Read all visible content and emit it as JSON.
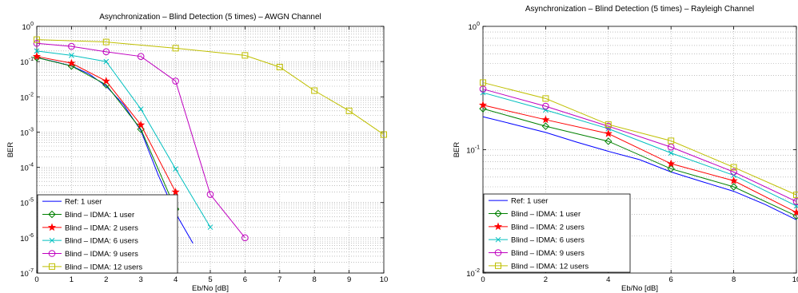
{
  "chart_data": [
    {
      "type": "line",
      "title": "Asynchronization – Blind Detection (5 times) – AWGN Channel",
      "xlabel": "Eb/No [dB]",
      "ylabel": "BER",
      "y_scale": "log",
      "xlim": [
        0,
        10
      ],
      "ylim": [
        1e-07,
        1
      ],
      "x_ticks": [
        "0",
        "1",
        "2",
        "3",
        "4",
        "5",
        "6",
        "7",
        "8",
        "9",
        "10"
      ],
      "y_ticks": [
        {
          "base": "10",
          "exp": "0"
        },
        {
          "base": "10",
          "exp": "-1"
        },
        {
          "base": "10",
          "exp": "-2"
        },
        {
          "base": "10",
          "exp": "-3"
        },
        {
          "base": "10",
          "exp": "-4"
        },
        {
          "base": "10",
          "exp": "-5"
        },
        {
          "base": "10",
          "exp": "-6"
        },
        {
          "base": "10",
          "exp": "-7"
        }
      ],
      "grid": true,
      "legend_position": "bottom-left",
      "series": [
        {
          "name": "Ref: 1 user",
          "color": "#0000ff",
          "marker": "none",
          "x": [
            0,
            0.5,
            1,
            1.5,
            2,
            2.5,
            3,
            3.5,
            4,
            4.5
          ],
          "y": [
            0.13,
            0.1,
            0.075,
            0.045,
            0.02,
            0.006,
            0.0011,
            6e-05,
            5e-06,
            7e-07
          ]
        },
        {
          "name": "Blind – IDMA: 1 user",
          "color": "#008000",
          "marker": "diamond",
          "x": [
            0,
            1,
            2,
            3,
            4
          ],
          "y": [
            0.13,
            0.075,
            0.022,
            0.0012,
            6.5e-06
          ]
        },
        {
          "name": "Blind – IDMA: 2 users",
          "color": "#ff0000",
          "marker": "star",
          "x": [
            0,
            1,
            2,
            3,
            4
          ],
          "y": [
            0.14,
            0.09,
            0.028,
            0.0016,
            2e-05
          ]
        },
        {
          "name": "Blind – IDMA: 6 users",
          "color": "#00bfbf",
          "marker": "x",
          "x": [
            0,
            1,
            2,
            3,
            4,
            5
          ],
          "y": [
            0.2,
            0.15,
            0.1,
            0.0045,
            9e-05,
            2e-06
          ]
        },
        {
          "name": "Blind – IDMA: 9 users",
          "color": "#bf00bf",
          "marker": "circle",
          "x": [
            0,
            1,
            2,
            3,
            4,
            5,
            6
          ],
          "y": [
            0.33,
            0.27,
            0.19,
            0.14,
            0.028,
            1.7e-05,
            1e-06
          ]
        },
        {
          "name": "Blind – IDMA: 12 users",
          "color": "#bfbf00",
          "marker": "square",
          "x": [
            0,
            2,
            4,
            6,
            7,
            8,
            9,
            10
          ],
          "y": [
            0.42,
            0.36,
            0.24,
            0.15,
            0.07,
            0.015,
            0.004,
            0.00085
          ]
        }
      ]
    },
    {
      "type": "line",
      "title": "Asynchronization – Blind Detection (5 times) – Rayleigh Channel",
      "xlabel": "Eb/No [dB]",
      "ylabel": "BER",
      "y_scale": "log",
      "xlim": [
        0,
        10
      ],
      "ylim": [
        0.01,
        1
      ],
      "x_ticks": [
        "0",
        "2",
        "4",
        "6",
        "8",
        "10"
      ],
      "y_ticks": [
        {
          "base": "10",
          "exp": "0"
        },
        {
          "base": "10",
          "exp": "-1"
        },
        {
          "base": "10",
          "exp": "-2"
        }
      ],
      "grid": true,
      "legend_position": "bottom-left",
      "series": [
        {
          "name": "Ref: 1 user",
          "color": "#0000ff",
          "marker": "none",
          "x": [
            0,
            1,
            2,
            3,
            4,
            5,
            6,
            7,
            8,
            9,
            10
          ],
          "y": [
            0.185,
            0.16,
            0.138,
            0.115,
            0.097,
            0.083,
            0.066,
            0.055,
            0.046,
            0.036,
            0.027
          ]
        },
        {
          "name": "Blind – IDMA: 1 user",
          "color": "#008000",
          "marker": "diamond",
          "x": [
            0,
            2,
            4,
            6,
            8,
            10
          ],
          "y": [
            0.215,
            0.155,
            0.117,
            0.07,
            0.05,
            0.029
          ]
        },
        {
          "name": "Blind – IDMA: 2 users",
          "color": "#ff0000",
          "marker": "star",
          "x": [
            0,
            2,
            4,
            6,
            8,
            10
          ],
          "y": [
            0.23,
            0.175,
            0.135,
            0.077,
            0.056,
            0.031
          ]
        },
        {
          "name": "Blind – IDMA: 6 users",
          "color": "#00bfbf",
          "marker": "x",
          "x": [
            0,
            2,
            4,
            6,
            8,
            10
          ],
          "y": [
            0.29,
            0.21,
            0.148,
            0.094,
            0.062,
            0.035
          ]
        },
        {
          "name": "Blind – IDMA: 9 users",
          "color": "#bf00bf",
          "marker": "circle",
          "x": [
            0,
            2,
            4,
            6,
            8,
            10
          ],
          "y": [
            0.31,
            0.225,
            0.155,
            0.105,
            0.066,
            0.038
          ]
        },
        {
          "name": "Blind – IDMA: 12 users",
          "color": "#bfbf00",
          "marker": "square",
          "x": [
            0,
            2,
            4,
            6,
            8,
            10
          ],
          "y": [
            0.35,
            0.26,
            0.16,
            0.118,
            0.072,
            0.043
          ]
        }
      ]
    }
  ]
}
